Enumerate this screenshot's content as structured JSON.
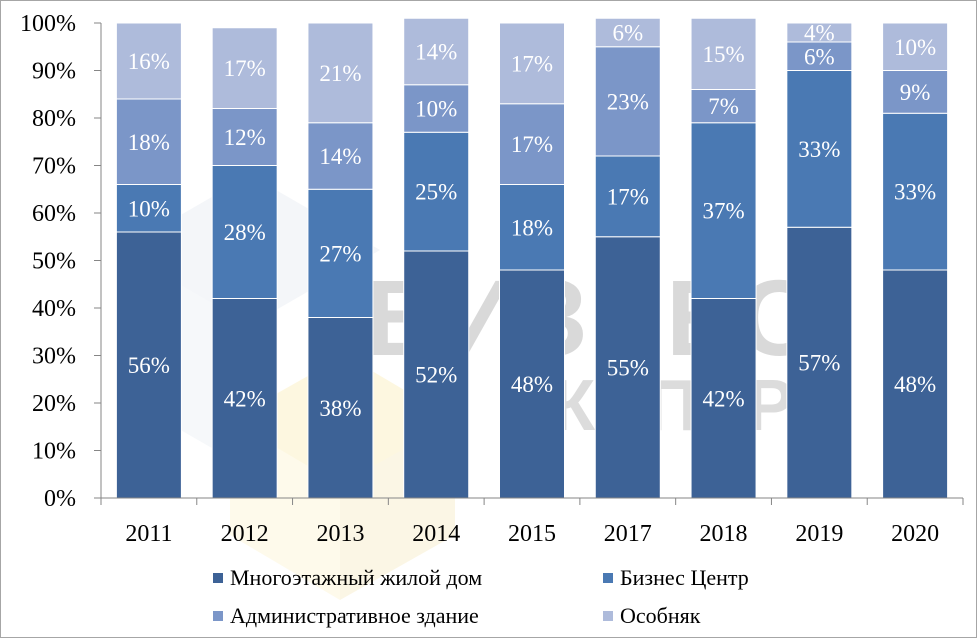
{
  "chart_data": {
    "type": "bar",
    "stacked": true,
    "categories": [
      "2011",
      "2012",
      "2013",
      "2014",
      "2015",
      "2017",
      "2018",
      "2019",
      "2020"
    ],
    "series": [
      {
        "name": "Многоэтажный жилой дом",
        "color": "#3d6296",
        "values": [
          56,
          42,
          38,
          52,
          48,
          55,
          42,
          57,
          48
        ],
        "labels": [
          "56%",
          "42%",
          "38%",
          "52%",
          "48%",
          "55%",
          "42%",
          "57%",
          "48%"
        ]
      },
      {
        "name": "Бизнес Центр",
        "color": "#4a79b3",
        "values": [
          10,
          28,
          27,
          25,
          18,
          17,
          37,
          33,
          33
        ],
        "labels": [
          "10%",
          "28%",
          "27%",
          "25%",
          "18%",
          "17%",
          "37%",
          "33%",
          "33%"
        ]
      },
      {
        "name": "Административное здание",
        "color": "#7b96c8",
        "values": [
          18,
          12,
          14,
          10,
          17,
          23,
          7,
          6,
          9
        ],
        "labels": [
          "18%",
          "12%",
          "14%",
          "10%",
          "17%",
          "23%",
          "7%",
          "6%",
          "9%"
        ]
      },
      {
        "name": "Особняк",
        "color": "#aebbdb",
        "values": [
          16,
          17,
          21,
          14,
          17,
          6,
          15,
          4,
          10
        ],
        "labels": [
          "16%",
          "17%",
          "21%",
          "14%",
          "17%",
          "6%",
          "15%",
          "4%",
          "10%"
        ]
      }
    ],
    "y_ticks": [
      "0%",
      "10%",
      "20%",
      "30%",
      "40%",
      "50%",
      "60%",
      "70%",
      "80%",
      "90%",
      "100%"
    ],
    "ylim": [
      0,
      100
    ],
    "title": "",
    "xlabel": "",
    "ylabel": "",
    "legend_position": "bottom"
  },
  "watermark": {
    "line1": "БИЗНЕС",
    "line2": "ЭКСПЕРТ"
  }
}
